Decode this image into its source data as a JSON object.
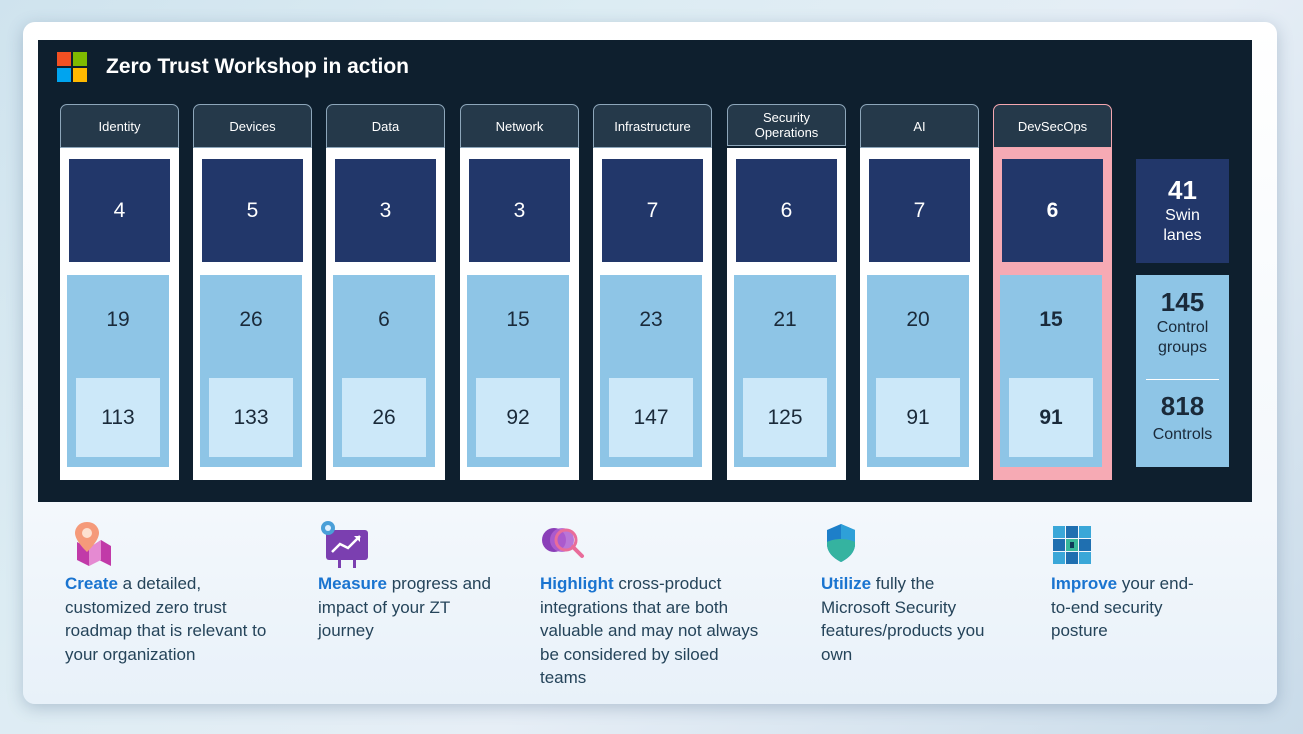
{
  "header": {
    "title": "Zero Trust Workshop in action",
    "logo_colors": [
      "#f25022",
      "#7fba00",
      "#00a4ef",
      "#ffb900"
    ]
  },
  "columns": [
    {
      "name": "Identity",
      "swimlanes": "4",
      "control_groups": "19",
      "controls": "113"
    },
    {
      "name": "Devices",
      "swimlanes": "5",
      "control_groups": "26",
      "controls": "133"
    },
    {
      "name": "Data",
      "swimlanes": "3",
      "control_groups": "6",
      "controls": "26"
    },
    {
      "name": "Network",
      "swimlanes": "3",
      "control_groups": "15",
      "controls": "92"
    },
    {
      "name": "Infrastructure",
      "swimlanes": "7",
      "control_groups": "23",
      "controls": "147"
    },
    {
      "name": "Security Operations",
      "swimlanes": "6",
      "control_groups": "21",
      "controls": "125"
    },
    {
      "name": "AI",
      "swimlanes": "7",
      "control_groups": "20",
      "controls": "91"
    },
    {
      "name": "DevSecOps",
      "swimlanes": "6",
      "control_groups": "15",
      "controls": "91"
    }
  ],
  "totals": {
    "swimlanes_value": "41",
    "swimlanes_label": "Swin lanes",
    "control_groups_value": "145",
    "control_groups_label": "Control groups",
    "controls_value": "818",
    "controls_label": "Controls"
  },
  "features": [
    {
      "icon": "map-pin-icon",
      "bold": "Create",
      "text": " a detailed, customized zero trust roadmap that is relevant to your organization"
    },
    {
      "icon": "chart-gear-icon",
      "bold": "Measure",
      "text": " progress and impact of your ZT journey"
    },
    {
      "icon": "magnifier-icon",
      "bold": "Highlight",
      "text": " cross-product integrations that are both valuable and may not always be considered by siloed teams"
    },
    {
      "icon": "shield-icon",
      "bold": "Utilize",
      "text": " fully the Microsoft Security features/products you own"
    },
    {
      "icon": "security-posture-icon",
      "bold": "Improve",
      "text": " your end-to-end security posture"
    }
  ],
  "colors": {
    "panel": "#0e1f2e",
    "swimlane_box": "#22376a",
    "control_group_box": "#8ec5e6",
    "controls_box": "#cce8f9",
    "highlight": "#f6aab4",
    "accent_text": "#1a74d0"
  }
}
